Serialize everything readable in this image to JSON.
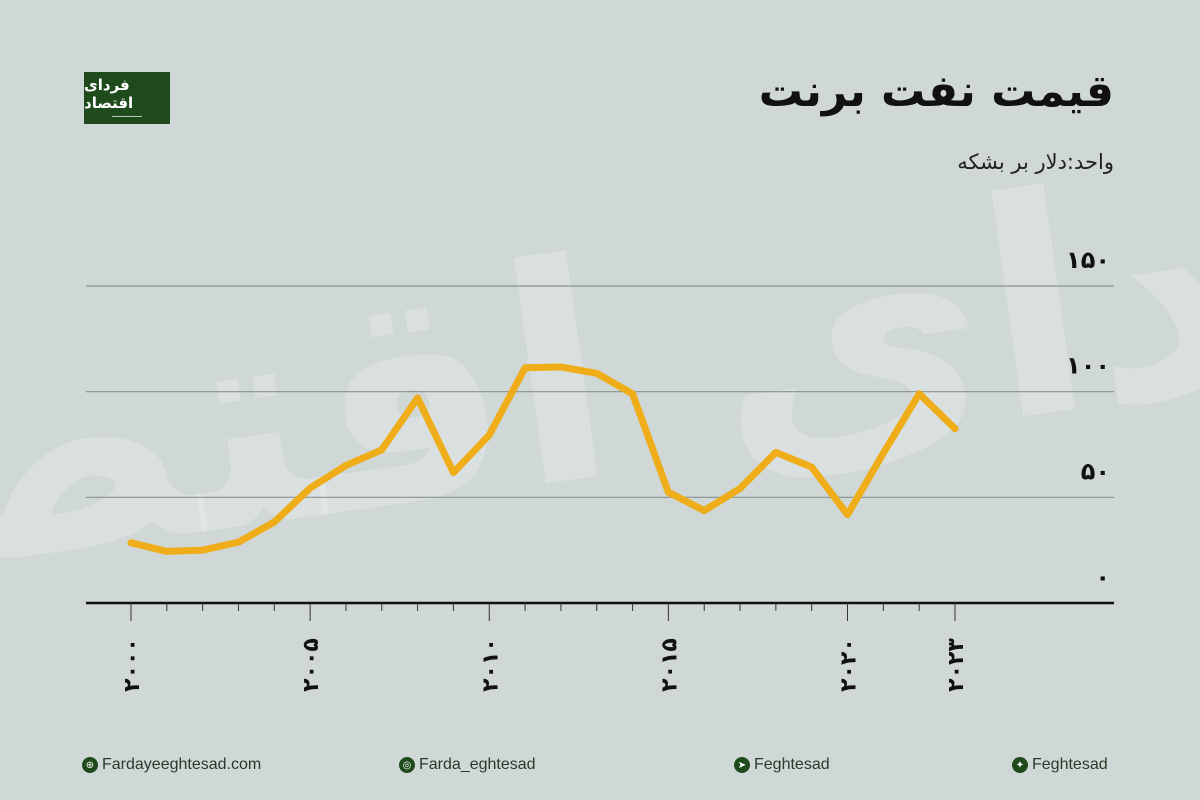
{
  "logo": {
    "text": "فردای اقتصاد"
  },
  "title": "قیمت نفت برنت",
  "subtitle": "واحد:دلار بر بشکه",
  "chart_data": {
    "type": "line",
    "title": "قیمت نفت برنت",
    "ylabel": "واحد:دلار بر بشکه",
    "x": [
      2000,
      2001,
      2002,
      2003,
      2004,
      2005,
      2006,
      2007,
      2008,
      2009,
      2010,
      2011,
      2012,
      2013,
      2014,
      2015,
      2016,
      2017,
      2018,
      2019,
      2020,
      2021,
      2022,
      2023
    ],
    "values": [
      28.5,
      24.4,
      25.0,
      28.8,
      38.3,
      54.4,
      65.1,
      72.5,
      97.0,
      61.7,
      79.5,
      111.3,
      111.7,
      108.7,
      99.0,
      52.4,
      43.7,
      54.2,
      71.3,
      64.3,
      41.8,
      70.9,
      99.0,
      82.5
    ],
    "ylim": [
      0,
      150
    ],
    "xlim": [
      2000,
      2023
    ],
    "yticks": [
      {
        "v": 0,
        "label": "۰"
      },
      {
        "v": 50,
        "label": "۵۰"
      },
      {
        "v": 100,
        "label": "۱۰۰"
      },
      {
        "v": 150,
        "label": "۱۵۰"
      }
    ],
    "xticks": [
      {
        "v": 2000,
        "label": "۲۰۰۰"
      },
      {
        "v": 2005,
        "label": "۲۰۰۵"
      },
      {
        "v": 2010,
        "label": "۲۰۱۰"
      },
      {
        "v": 2015,
        "label": "۲۰۱۵"
      },
      {
        "v": 2020,
        "label": "۲۰۲۰"
      },
      {
        "v": 2023,
        "label": "۲۰۲۳"
      }
    ],
    "grid": true,
    "line_color": "#f0ad1a"
  },
  "footer": [
    {
      "icon": "globe-icon",
      "glyph": "⊕",
      "text": "Fardayeeghtesad.com"
    },
    {
      "icon": "instagram-icon",
      "glyph": "◎",
      "text": "Farda_eghtesad"
    },
    {
      "icon": "telegram-icon",
      "glyph": "➤",
      "text": "Feghtesad"
    },
    {
      "icon": "twitter-icon",
      "glyph": "✦",
      "text": "Feghtesad"
    }
  ]
}
